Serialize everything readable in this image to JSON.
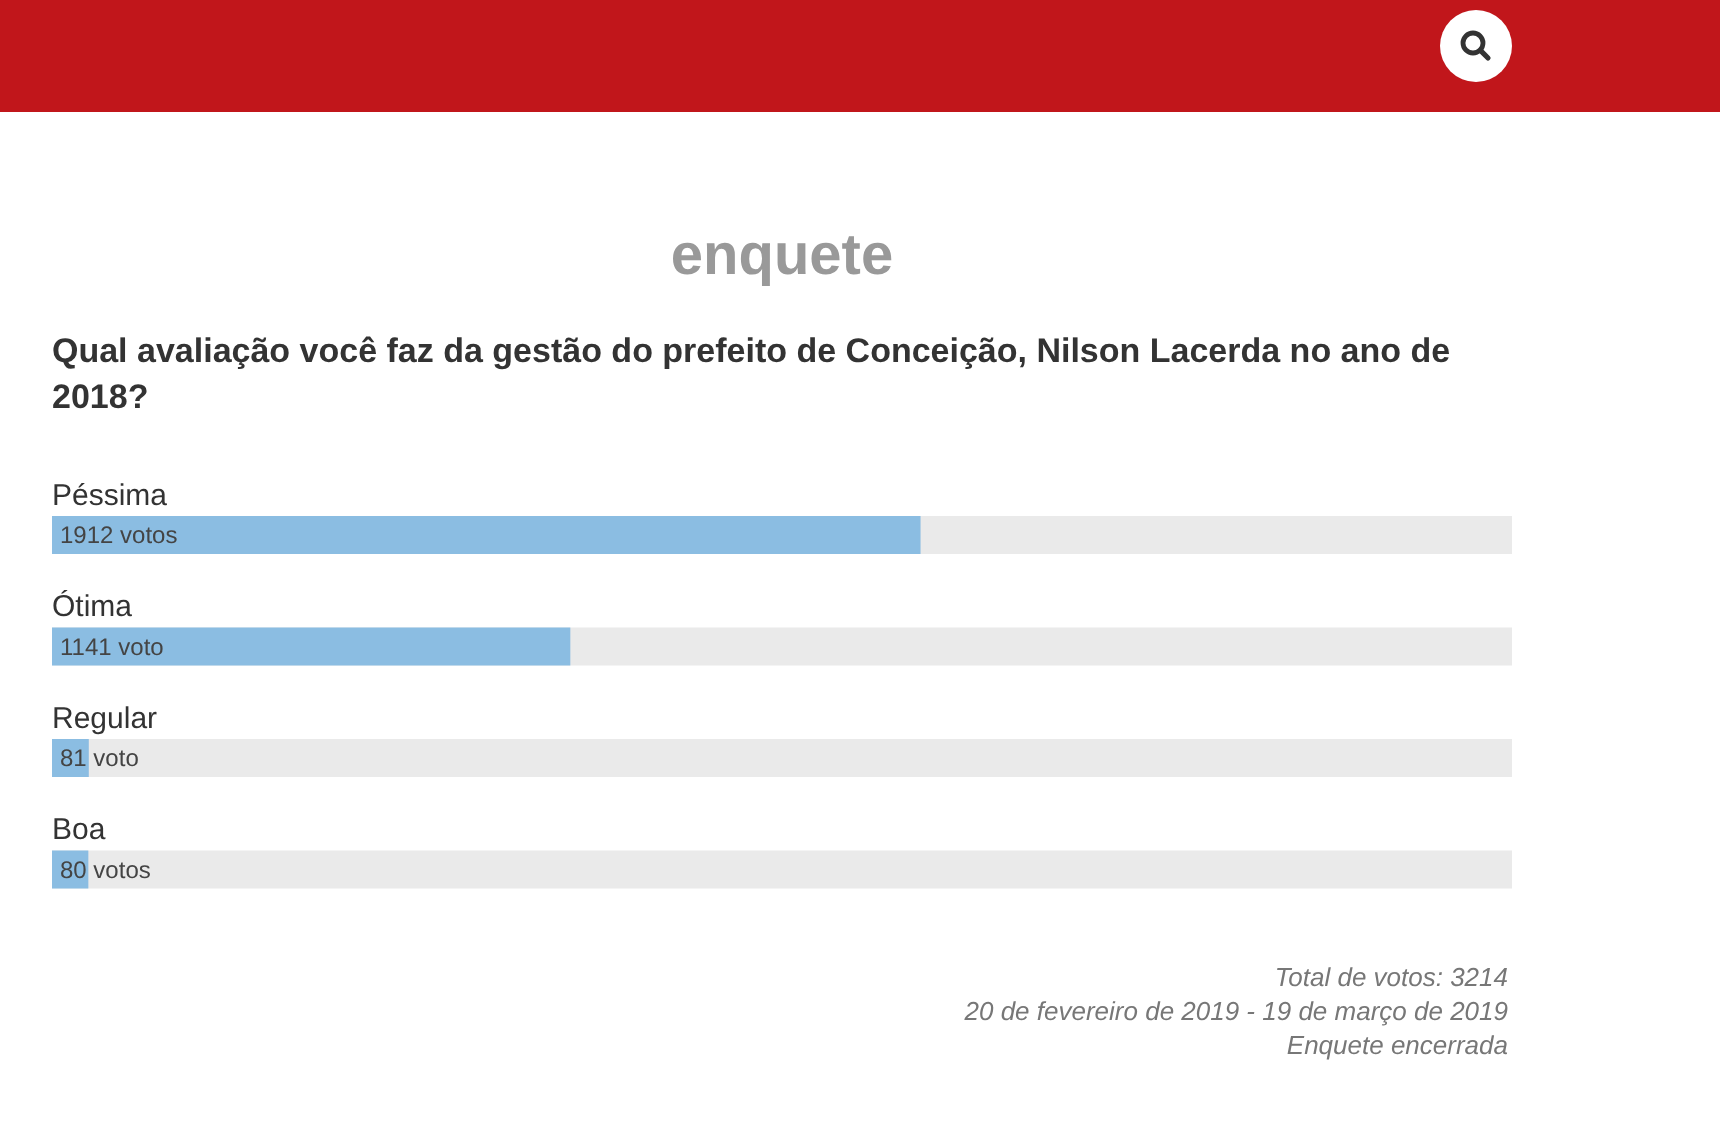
{
  "chart_data": {
    "type": "bar",
    "orientation": "horizontal",
    "title": "enquete",
    "subtitle": "Qual avaliação você faz da gestão do prefeito de Conceição, Nilson Lacerda no ano de 2018?",
    "categories": [
      "Péssima",
      "Ótima",
      "Regular",
      "Boa"
    ],
    "values": [
      1912,
      1141,
      81,
      80
    ],
    "value_labels": [
      "1912 votos",
      "1141 voto",
      "81 voto",
      "80 votos"
    ],
    "color": "#8bbde2",
    "bands": [
      {
        "axis": "y",
        "from": "Péssima",
        "to": "Péssima",
        "color": "#eaeaea"
      },
      {
        "axis": "y",
        "from": "Ótima",
        "to": "Ótima",
        "color": "#eaeaea"
      },
      {
        "axis": "y",
        "from": "Regular",
        "to": "Regular",
        "color": "#eaeaea"
      },
      {
        "axis": "y",
        "from": "Boa",
        "to": "Boa",
        "color": "#eaeaea"
      }
    ],
    "tick_labels": "y",
    "annotations": [
      "Total de votos: 3214",
      "20 de fevereiro de 2019 - 19 de março de 2019",
      "Enquete encerrada"
    ]
  }
}
